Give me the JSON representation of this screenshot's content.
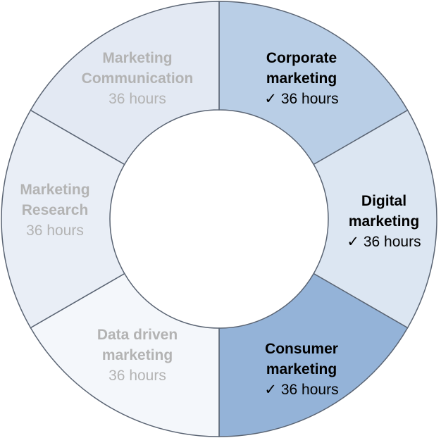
{
  "segments": [
    {
      "id": "corporate",
      "title_lines": [
        "Corporate",
        "marketing"
      ],
      "hours": "36 hours",
      "checked": true,
      "fill": "#b9cee6",
      "text_color": "#000000"
    },
    {
      "id": "digital",
      "title_lines": [
        "Digital",
        "marketing"
      ],
      "hours": "36 hours",
      "checked": true,
      "fill": "#dce6f2",
      "text_color": "#000000"
    },
    {
      "id": "consumer",
      "title_lines": [
        "Consumer",
        "marketing"
      ],
      "hours": "36 hours",
      "checked": true,
      "fill": "#94b3d8",
      "text_color": "#000000"
    },
    {
      "id": "data-driven",
      "title_lines": [
        "Data driven",
        "marketing"
      ],
      "hours": "36 hours",
      "checked": false,
      "fill": "#f4f7fb",
      "text_color": "#b3b3b3"
    },
    {
      "id": "research",
      "title_lines": [
        "Marketing",
        "Research"
      ],
      "hours": "36 hours",
      "checked": false,
      "fill": "#e9eef6",
      "text_color": "#b3b3b3"
    },
    {
      "id": "communication",
      "title_lines": [
        "Marketing",
        "Communication"
      ],
      "hours": "36 hours",
      "checked": false,
      "fill": "#e3e9f3",
      "text_color": "#b3b3b3"
    }
  ],
  "check_symbol": "✓"
}
